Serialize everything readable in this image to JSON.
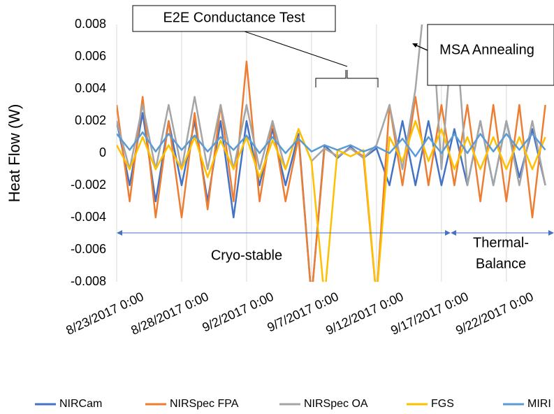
{
  "chart_data": {
    "type": "line",
    "y_label": "Heat Flow (W)",
    "x": [
      "8/23/2017 0:00",
      "8/24/2017 0:00",
      "8/25/2017 0:00",
      "8/26/2017 0:00",
      "8/27/2017 0:00",
      "8/28/2017 0:00",
      "8/29/2017 0:00",
      "8/30/2017 0:00",
      "8/31/2017 0:00",
      "9/1/2017 0:00",
      "9/2/2017 0:00",
      "9/3/2017 0:00",
      "9/4/2017 0:00",
      "9/5/2017 0:00",
      "9/6/2017 0:00",
      "9/7/2017 0:00",
      "9/8/2017 0:00",
      "9/9/2017 0:00",
      "9/10/2017 0:00",
      "9/11/2017 0:00",
      "9/12/2017 0:00",
      "9/13/2017 0:00",
      "9/14/2017 0:00",
      "9/15/2017 0:00",
      "9/16/2017 0:00",
      "9/17/2017 0:00",
      "9/18/2017 0:00",
      "9/19/2017 0:00",
      "9/20/2017 0:00",
      "9/21/2017 0:00",
      "9/22/2017 0:00",
      "9/23/2017 0:00",
      "9/24/2017 0:00",
      "9/25/2017 0:00"
    ],
    "series": [
      {
        "name": "NIRCam",
        "color": "#4472c4",
        "values": [
          0.002,
          -0.002,
          0.0025,
          -0.003,
          0.002,
          -0.002,
          0.002,
          -0.003,
          0.002,
          -0.004,
          0.002,
          -0.002,
          0.0015,
          -0.002,
          0.0012,
          -0.009,
          0.0005,
          -0.0003,
          0.0004,
          -0.0003,
          0.0003,
          -0.002,
          0.002,
          -0.002,
          0.002,
          -0.002,
          0.0015,
          -0.002,
          0.002,
          -0.002,
          0.002,
          -0.0015,
          0.0015,
          -0.002
        ]
      },
      {
        "name": "NIRSpec FPA",
        "color": "#ed7d31",
        "values": [
          0.003,
          -0.003,
          0.0035,
          -0.004,
          0.002,
          -0.004,
          0.0025,
          -0.0035,
          0.003,
          -0.003,
          0.0057,
          -0.003,
          0.002,
          -0.003,
          0.001,
          -0.009,
          0.0003,
          -0.0002,
          0.0003,
          -0.0002,
          -0.009,
          0.003,
          -0.002,
          0.0035,
          -0.002,
          0.003,
          -0.002,
          0.003,
          -0.003,
          0.003,
          -0.003,
          0.003,
          -0.004,
          0.003
        ]
      },
      {
        "name": "NIRSpec OA",
        "color": "#a5a5a5",
        "values": [
          0.002,
          -0.001,
          0.003,
          -0.001,
          0.003,
          -0.001,
          0.0035,
          -0.001,
          0.003,
          -0.001,
          0.003,
          -0.001,
          0.002,
          -0.001,
          0.0015,
          -0.0005,
          0.0003,
          -0.0002,
          0.0003,
          -0.0003,
          0.0005,
          0.003,
          -0.001,
          0.004,
          0.012,
          -0.001,
          0.009,
          -0.002,
          0.002,
          -0.002,
          0.002,
          -0.002,
          0.002,
          -0.002
        ]
      },
      {
        "name": "FGS",
        "color": "#ffc000",
        "values": [
          0.0005,
          -0.001,
          0.001,
          -0.001,
          0.0005,
          -0.001,
          0.001,
          -0.0015,
          0.0008,
          -0.001,
          0.001,
          -0.0015,
          0.0008,
          -0.001,
          0.0015,
          -0.0005,
          -0.009,
          0.0002,
          -0.0002,
          0.0002,
          -0.009,
          0.001,
          -0.0005,
          0.002,
          -0.0005,
          0.0015,
          -0.001,
          0.001,
          -0.001,
          0.001,
          -0.001,
          0.001,
          -0.001,
          0.001
        ]
      },
      {
        "name": "MIRI",
        "color": "#5b9bd5",
        "values": [
          0.0012,
          0.0002,
          0.0013,
          0.0001,
          0.0012,
          0.0002,
          0.0011,
          0.0001,
          0.001,
          0.0002,
          0.0011,
          0,
          0.001,
          0,
          0.0009,
          0.0001,
          0.0005,
          0.0002,
          0.0005,
          0.0001,
          0.0004,
          0,
          0.0009,
          -0.0002,
          0.001,
          0,
          0.0012,
          0,
          0.0012,
          0.0001,
          0.0012,
          0.0002,
          0.0012,
          0.0002
        ]
      }
    ],
    "xlim": [
      "8/23/2017 0:00",
      "9/25/2017 16:00"
    ],
    "xticks": [
      "8/23/2017 0:00",
      "8/28/2017 0:00",
      "9/2/2017 0:00",
      "9/7/2017 0:00",
      "9/12/2017 0:00",
      "9/17/2017 0:00",
      "9/22/2017 0:00"
    ],
    "ylim": [
      -0.008,
      0.008
    ],
    "yticks": [
      -0.008,
      -0.006,
      -0.004,
      -0.002,
      0,
      0.002,
      0.004,
      0.006,
      0.008
    ],
    "grid": "x",
    "annotations": {
      "e2e": "E2E Conductance Test",
      "msa": "MSA Annealing",
      "cryo": "Cryo-stable",
      "thermal": [
        "Thermal-",
        "Balance"
      ]
    }
  }
}
